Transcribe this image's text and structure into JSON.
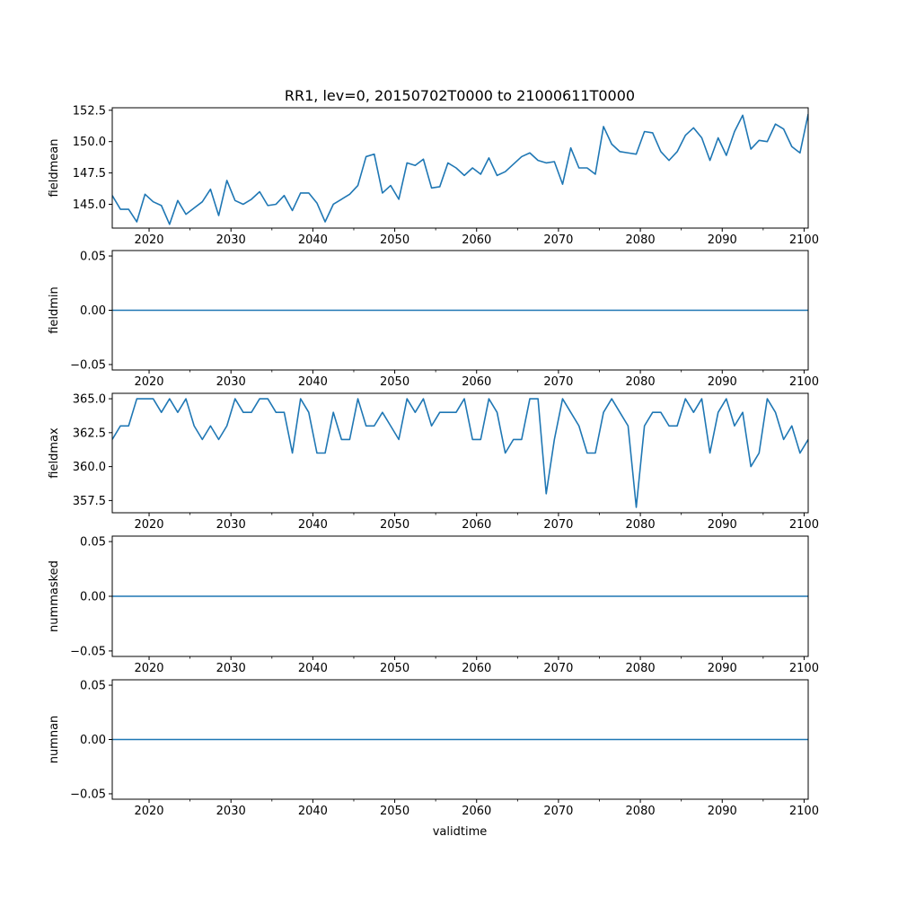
{
  "chart_data": {
    "type": "line",
    "title": "RR1, lev=0, 20150702T0000 to 21000611T0000",
    "xlabel": "validtime",
    "xlim": [
      2015.5,
      2100.5
    ],
    "x_ticks": [
      2020,
      2030,
      2040,
      2050,
      2060,
      2070,
      2080,
      2090,
      2100
    ],
    "x_tick_labels": [
      "2020",
      "2030",
      "2040",
      "2050",
      "2060",
      "2070",
      "2080",
      "2090",
      "2100"
    ],
    "color": "#1f77b4",
    "x": [
      2015.5,
      2016.5,
      2017.5,
      2018.5,
      2019.5,
      2020.5,
      2021.5,
      2022.5,
      2023.5,
      2024.5,
      2025.5,
      2026.5,
      2027.5,
      2028.5,
      2029.5,
      2030.5,
      2031.5,
      2032.5,
      2033.5,
      2034.5,
      2035.5,
      2036.5,
      2037.5,
      2038.5,
      2039.5,
      2040.5,
      2041.5,
      2042.5,
      2043.5,
      2044.5,
      2045.5,
      2046.5,
      2047.5,
      2048.5,
      2049.5,
      2050.5,
      2051.5,
      2052.5,
      2053.5,
      2054.5,
      2055.5,
      2056.5,
      2057.5,
      2058.5,
      2059.5,
      2060.5,
      2061.5,
      2062.5,
      2063.5,
      2064.5,
      2065.5,
      2066.5,
      2067.5,
      2068.5,
      2069.5,
      2070.5,
      2071.5,
      2072.5,
      2073.5,
      2074.5,
      2075.5,
      2076.5,
      2077.5,
      2078.5,
      2079.5,
      2080.5,
      2081.5,
      2082.5,
      2083.5,
      2084.5,
      2085.5,
      2086.5,
      2087.5,
      2088.5,
      2089.5,
      2090.5,
      2091.5,
      2092.5,
      2093.5,
      2094.5,
      2095.5,
      2096.5,
      2097.5,
      2098.5,
      2099.5,
      2100.5
    ],
    "panels": [
      {
        "name": "fieldmean",
        "ylabel": "fieldmean",
        "ylim": [
          143.1,
          152.7
        ],
        "y_ticks": [
          145.0,
          147.5,
          150.0,
          152.5
        ],
        "y_tick_labels": [
          "145.0",
          "147.5",
          "150.0",
          "152.5"
        ],
        "values": [
          145.7,
          144.6,
          144.6,
          143.6,
          145.8,
          145.2,
          144.9,
          143.4,
          145.3,
          144.2,
          144.7,
          145.2,
          146.2,
          144.1,
          146.9,
          145.3,
          145.0,
          145.4,
          146.0,
          144.9,
          145.0,
          145.7,
          144.5,
          145.9,
          145.9,
          145.1,
          143.6,
          145.0,
          145.4,
          145.8,
          146.5,
          148.8,
          149.0,
          145.9,
          146.5,
          145.4,
          148.3,
          148.1,
          148.6,
          146.3,
          146.4,
          148.3,
          147.9,
          147.3,
          147.9,
          147.4,
          148.7,
          147.3,
          147.6,
          148.2,
          148.8,
          149.1,
          148.5,
          148.3,
          148.4,
          146.6,
          149.5,
          147.9,
          147.9,
          147.4,
          151.2,
          149.8,
          149.2,
          149.1,
          149.0,
          150.8,
          150.7,
          149.2,
          148.5,
          149.2,
          150.5,
          151.1,
          150.3,
          148.5,
          150.3,
          148.9,
          150.8,
          152.1,
          149.4,
          150.1,
          150.0,
          151.4,
          151.0,
          149.6,
          149.1,
          152.2
        ]
      },
      {
        "name": "fieldmin",
        "ylabel": "fieldmin",
        "ylim": [
          -0.055,
          0.055
        ],
        "y_ticks": [
          -0.05,
          0.0,
          0.05
        ],
        "y_tick_labels": [
          "−0.05",
          "0.00",
          "0.05"
        ],
        "values": "all 0"
      },
      {
        "name": "fieldmax",
        "ylabel": "fieldmax",
        "ylim": [
          356.6,
          365.4
        ],
        "y_ticks": [
          357.5,
          360.0,
          362.5,
          365.0
        ],
        "y_tick_labels": [
          "357.5",
          "360.0",
          "362.5",
          "365.0"
        ],
        "values": [
          362,
          363,
          363,
          365,
          365,
          365,
          364,
          365,
          364,
          365,
          363,
          362,
          363,
          362,
          363,
          365,
          364,
          364,
          365,
          365,
          364,
          364,
          361,
          365,
          364,
          361,
          361,
          364,
          362,
          362,
          365,
          363,
          363,
          364,
          363,
          362,
          365,
          364,
          365,
          363,
          364,
          364,
          364,
          365,
          362,
          362,
          365,
          364,
          361,
          362,
          362,
          365,
          365,
          358,
          362,
          365,
          364,
          363,
          361,
          361,
          364,
          365,
          364,
          363,
          357,
          363,
          364,
          364,
          363,
          363,
          365,
          364,
          365,
          361,
          364,
          365,
          363,
          364,
          360,
          361,
          365,
          364,
          362,
          363,
          361,
          362
        ]
      },
      {
        "name": "nummasked",
        "ylabel": "nummasked",
        "ylim": [
          -0.055,
          0.055
        ],
        "y_ticks": [
          -0.05,
          0.0,
          0.05
        ],
        "y_tick_labels": [
          "−0.05",
          "0.00",
          "0.05"
        ],
        "values": "all 0"
      },
      {
        "name": "numnan",
        "ylabel": "numnan",
        "ylim": [
          -0.055,
          0.055
        ],
        "y_ticks": [
          -0.05,
          0.0,
          0.05
        ],
        "y_tick_labels": [
          "−0.05",
          "0.00",
          "0.05"
        ],
        "values": "all 0"
      }
    ]
  }
}
